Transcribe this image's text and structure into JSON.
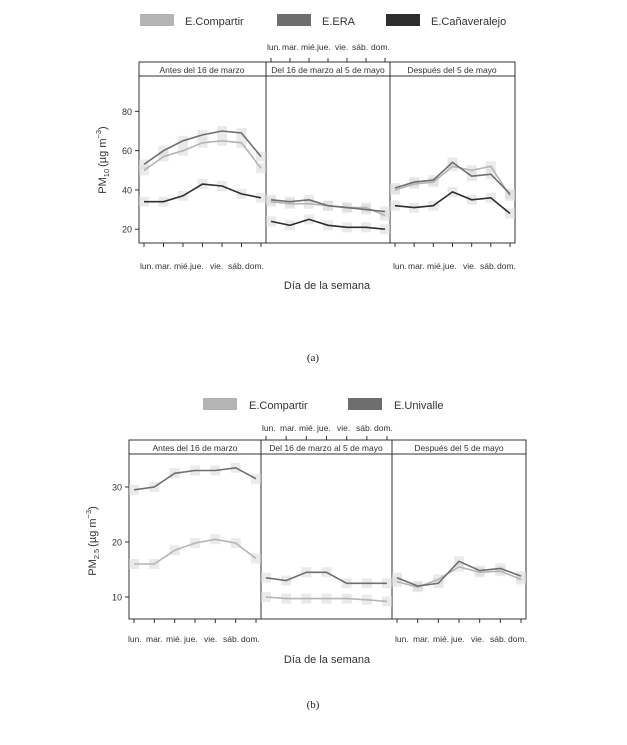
{
  "days": [
    "lun.",
    "mar.",
    "mié.",
    "jue.",
    "vie.",
    "sáb.",
    "dom."
  ],
  "periods": [
    "Antes del 16 de marzo",
    "Del 16 de marzo al 5 de mayo",
    "Después del 5 de mayo"
  ],
  "xlabel": "Día de la semana",
  "chart_data": [
    {
      "type": "line",
      "caption": "(a)",
      "ylabel_main": "PM",
      "ylabel_sub": "10",
      "ylabel_units": "(µg m",
      "ylabel_sup": "−3",
      "ylabel_close": ")",
      "ylim": [
        13,
        98
      ],
      "yticks": [
        20,
        40,
        60,
        80
      ],
      "series": [
        {
          "name": "E.Compartir",
          "color": "#b4b4b4",
          "values": [
            [
              50,
              57,
              60,
              64,
              65,
              64,
              51
            ],
            [
              34,
              33,
              33,
              32,
              31,
              31,
              27
            ],
            [
              40,
              43,
              44,
              52,
              50,
              52,
              37
            ]
          ]
        },
        {
          "name": "E.ERA",
          "color": "#6e6e6e",
          "values": [
            [
              53,
              60,
              65,
              68,
              70,
              69,
              57
            ],
            [
              35,
              34,
              35,
              32,
              31,
              30,
              29
            ],
            [
              41,
              44,
              45,
              54,
              47,
              48,
              38
            ]
          ]
        },
        {
          "name": "E.Cañaveralejo",
          "color": "#2e2e2e",
          "values": [
            [
              34,
              34,
              37,
              43,
              42,
              38,
              36
            ],
            [
              24,
              22,
              25,
              22,
              21,
              21,
              20
            ],
            [
              32,
              31,
              32,
              39,
              35,
              36,
              28
            ]
          ]
        }
      ]
    },
    {
      "type": "line",
      "caption": "(b)",
      "ylabel_main": "PM",
      "ylabel_sub": "2.5",
      "ylabel_units": "(µg m",
      "ylabel_sup": "−3",
      "ylabel_close": ")",
      "ylim": [
        6,
        36
      ],
      "yticks": [
        10,
        20,
        30
      ],
      "series": [
        {
          "name": "E.Compartir",
          "color": "#b4b4b4",
          "values": [
            [
              16,
              16,
              18.5,
              19.8,
              20.5,
              19.8,
              17
            ],
            [
              10,
              9.7,
              9.7,
              9.7,
              9.7,
              9.5,
              9.2
            ],
            [
              12.8,
              11.8,
              13.2,
              15.5,
              14.5,
              14.7,
              13.2
            ]
          ]
        },
        {
          "name": "E.Univalle",
          "color": "#6e6e6e",
          "values": [
            [
              29.5,
              30,
              32.5,
              33,
              33,
              33.5,
              31.5
            ],
            [
              13.5,
              13,
              14.5,
              14.5,
              12.5,
              12.5,
              12.5
            ],
            [
              13.5,
              12,
              12.5,
              16.5,
              14.8,
              15.2,
              13.8
            ]
          ]
        }
      ]
    }
  ]
}
